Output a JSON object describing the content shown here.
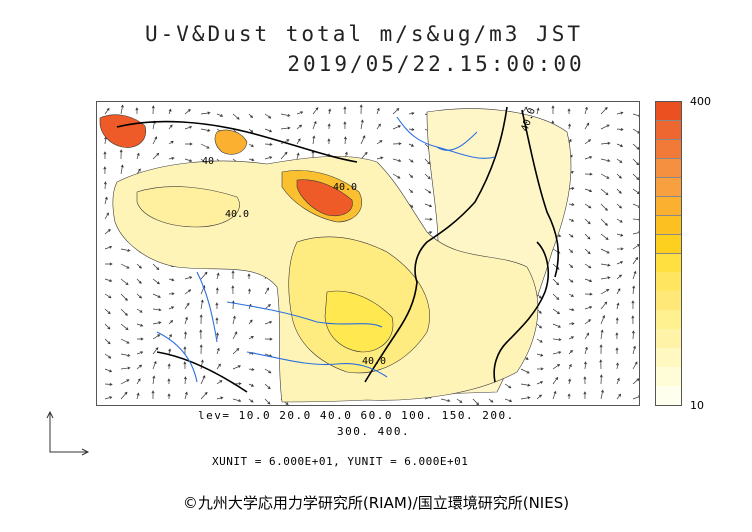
{
  "title": {
    "line1": "U-V&Dust total m/s&ug/m3 JST",
    "line2": "2019/05/22.15:00:00"
  },
  "colorbar": {
    "max_label": "400",
    "min_label": "10",
    "colors": [
      "#ffffee",
      "#fffcd8",
      "#fff8c0",
      "#fff3a8",
      "#fff090",
      "#ffe878",
      "#ffe560",
      "#ffe040",
      "#fdd020",
      "#fcc020",
      "#fbb030",
      "#f8a040",
      "#f59040",
      "#f27a38",
      "#ee6630",
      "#ea5020"
    ]
  },
  "contour_labels": [
    "40.0",
    "40.0",
    "40",
    "40.0",
    "40.0",
    "40.0",
    "40.0"
  ],
  "levels": {
    "line1": "lev= 10.0 20.0 40.0 60.0 100. 150. 200.",
    "line2": "300. 400."
  },
  "units": "XUNIT = 6.000E+01, YUNIT = 6.000E+01",
  "credit": "©九州大学応用力学研究所(RIAM)/国立環境研究所(NIES)"
}
